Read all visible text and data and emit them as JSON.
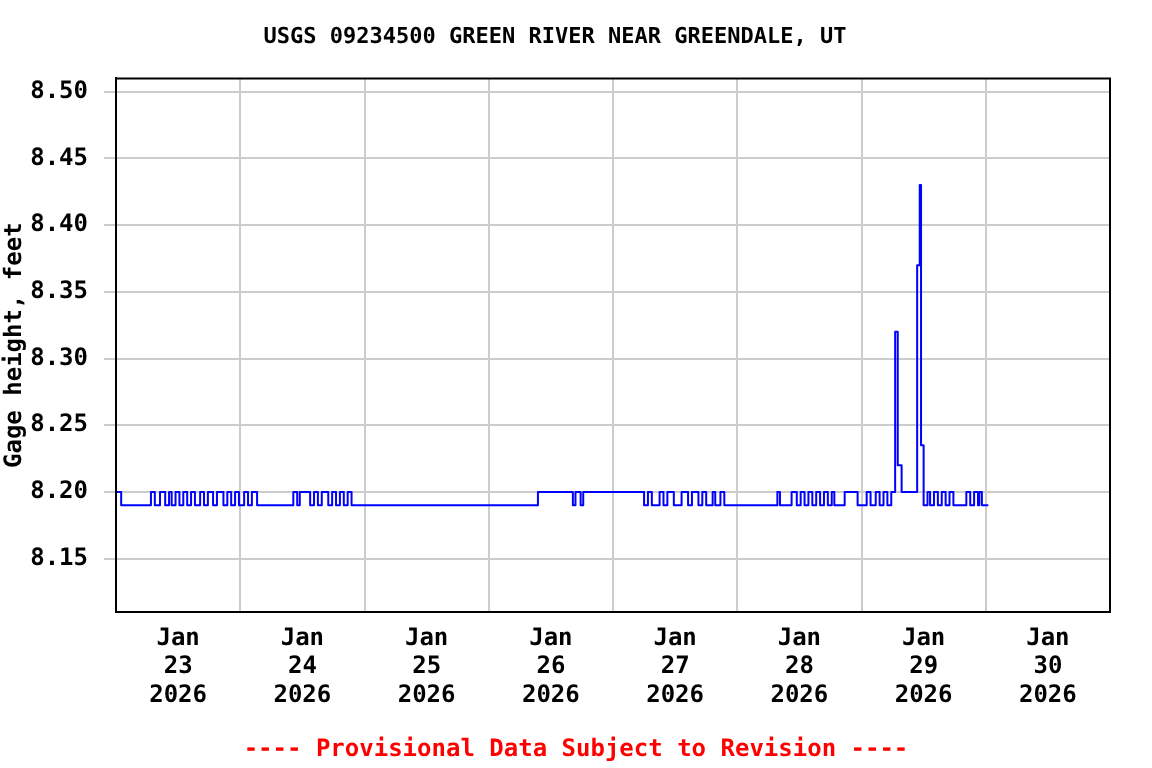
{
  "chart_data": {
    "type": "step",
    "title": "USGS 09234500 GREEN RIVER NEAR GREENDALE, UT",
    "ylabel": "Gage height, feet",
    "annotations": [
      "---- Provisional Data Subject to Revision ----"
    ],
    "xlim": [
      "2026-01-23",
      "2026-01-31"
    ],
    "xticks": [
      {
        "value": "2026-01-23T12:00",
        "label": "Jan 23 2026"
      },
      {
        "value": "2026-01-24",
        "label": null
      },
      {
        "value": "2026-01-24T12:00",
        "label": "Jan 24 2026"
      },
      {
        "value": "2026-01-25",
        "label": null
      },
      {
        "value": "2026-01-25T12:00",
        "label": "Jan 25 2026"
      },
      {
        "value": "2026-01-26",
        "label": null
      },
      {
        "value": "2026-01-26T12:00",
        "label": "Jan 26 2026"
      },
      {
        "value": "2026-01-27",
        "label": null
      },
      {
        "value": "2026-01-27T12:00",
        "label": "Jan 27 2026"
      },
      {
        "value": "2026-01-28",
        "label": null
      },
      {
        "value": "2026-01-28T12:00",
        "label": "Jan 28 2026"
      },
      {
        "value": "2026-01-29",
        "label": null
      },
      {
        "value": "2026-01-29T12:00",
        "label": "Jan 29 2026"
      },
      {
        "value": "2026-01-30",
        "label": null
      },
      {
        "value": "2026-01-30T12:00",
        "label": "Jan 30 2026"
      }
    ],
    "ylim": [
      8.11,
      8.51
    ],
    "yticks": [
      {
        "value": 8.15,
        "label": "8.15"
      },
      {
        "value": 8.2,
        "label": "8.20"
      },
      {
        "value": 8.25,
        "label": "8.25"
      },
      {
        "value": 8.3,
        "label": "8.30"
      },
      {
        "value": 8.35,
        "label": "8.35"
      },
      {
        "value": 8.4,
        "label": "8.40"
      },
      {
        "value": 8.45,
        "label": "8.45"
      },
      {
        "value": 8.5,
        "label": "8.50"
      }
    ],
    "grid": true,
    "legend": false,
    "marker": "none",
    "line_style": "solid",
    "series": [
      {
        "color": "#0000ff",
        "x": [
          "2026-01-23T00:00",
          "2026-01-23T01:00",
          "2026-01-23T06:30",
          "2026-01-23T06:45",
          "2026-01-23T07:30",
          "2026-01-23T08:30",
          "2026-01-23T09:30",
          "2026-01-23T10:15",
          "2026-01-23T10:45",
          "2026-01-23T11:30",
          "2026-01-23T12:15",
          "2026-01-23T13:00",
          "2026-01-23T13:45",
          "2026-01-23T14:30",
          "2026-01-23T15:15",
          "2026-01-23T16:15",
          "2026-01-23T17:00",
          "2026-01-23T17:45",
          "2026-01-23T18:45",
          "2026-01-23T19:30",
          "2026-01-23T20:45",
          "2026-01-23T21:30",
          "2026-01-23T22:15",
          "2026-01-23T23:00",
          "2026-01-23T23:45",
          "2026-01-24T00:45",
          "2026-01-24T01:30",
          "2026-01-24T02:15",
          "2026-01-24T03:15",
          "2026-01-24T10:15",
          "2026-01-24T11:00",
          "2026-01-24T11:30",
          "2026-01-24T13:30",
          "2026-01-24T14:15",
          "2026-01-24T15:00",
          "2026-01-24T15:45",
          "2026-01-24T17:00",
          "2026-01-24T17:45",
          "2026-01-24T18:30",
          "2026-01-24T19:15",
          "2026-01-24T20:00",
          "2026-01-24T20:45",
          "2026-01-24T21:30",
          "2026-01-26T09:30",
          "2026-01-26T16:15",
          "2026-01-26T16:45",
          "2026-01-26T17:45",
          "2026-01-26T18:15",
          "2026-01-27T06:00",
          "2026-01-27T06:45",
          "2026-01-27T07:30",
          "2026-01-27T09:00",
          "2026-01-27T09:45",
          "2026-01-27T10:30",
          "2026-01-27T11:45",
          "2026-01-27T13:15",
          "2026-01-27T14:30",
          "2026-01-27T15:15",
          "2026-01-27T16:30",
          "2026-01-27T17:15",
          "2026-01-27T18:00",
          "2026-01-27T19:15",
          "2026-01-27T19:45",
          "2026-01-27T20:45",
          "2026-01-27T21:30",
          "2026-01-28T07:45",
          "2026-01-28T08:15",
          "2026-01-28T10:30",
          "2026-01-28T11:30",
          "2026-01-28T12:15",
          "2026-01-28T13:00",
          "2026-01-28T13:45",
          "2026-01-28T14:30",
          "2026-01-28T15:15",
          "2026-01-28T16:00",
          "2026-01-28T16:45",
          "2026-01-28T17:30",
          "2026-01-28T18:15",
          "2026-01-28T18:45",
          "2026-01-28T20:45",
          "2026-01-28T23:15",
          "2026-01-29T01:00",
          "2026-01-29T01:45",
          "2026-01-29T02:45",
          "2026-01-29T03:30",
          "2026-01-29T04:15",
          "2026-01-29T05:00",
          "2026-01-29T05:45",
          "2026-01-29T06:30",
          "2026-01-29T07:00",
          "2026-01-29T07:45",
          "2026-01-29T10:45",
          "2026-01-29T11:15",
          "2026-01-29T11:30",
          "2026-01-29T12:00",
          "2026-01-29T12:45",
          "2026-01-29T13:15",
          "2026-01-29T14:00",
          "2026-01-29T14:45",
          "2026-01-29T15:30",
          "2026-01-29T16:15",
          "2026-01-29T17:00",
          "2026-01-29T17:45",
          "2026-01-29T20:15",
          "2026-01-29T21:00",
          "2026-01-29T21:45",
          "2026-01-29T22:30",
          "2026-01-29T22:45",
          "2026-01-29T23:15",
          "2026-01-30T00:30"
        ],
        "values": [
          8.2,
          8.19,
          8.19,
          8.2,
          8.19,
          8.2,
          8.19,
          8.2,
          8.19,
          8.2,
          8.19,
          8.2,
          8.19,
          8.2,
          8.19,
          8.2,
          8.19,
          8.2,
          8.19,
          8.2,
          8.19,
          8.2,
          8.19,
          8.2,
          8.19,
          8.2,
          8.19,
          8.2,
          8.19,
          8.2,
          8.19,
          8.2,
          8.19,
          8.2,
          8.19,
          8.2,
          8.19,
          8.2,
          8.19,
          8.2,
          8.19,
          8.2,
          8.19,
          8.2,
          8.19,
          8.2,
          8.19,
          8.2,
          8.19,
          8.2,
          8.19,
          8.2,
          8.19,
          8.2,
          8.19,
          8.2,
          8.19,
          8.2,
          8.19,
          8.2,
          8.19,
          8.2,
          8.19,
          8.2,
          8.19,
          8.2,
          8.19,
          8.2,
          8.19,
          8.2,
          8.19,
          8.2,
          8.19,
          8.2,
          8.19,
          8.2,
          8.19,
          8.2,
          8.19,
          8.2,
          8.19,
          8.2,
          8.19,
          8.2,
          8.19,
          8.2,
          8.19,
          8.2,
          8.32,
          8.22,
          8.2,
          8.37,
          8.43,
          8.235,
          8.19,
          8.2,
          8.19,
          8.2,
          8.19,
          8.2,
          8.19,
          8.2,
          8.19,
          8.2,
          8.19,
          8.2,
          8.19,
          8.2,
          8.19,
          8.19
        ]
      }
    ]
  }
}
